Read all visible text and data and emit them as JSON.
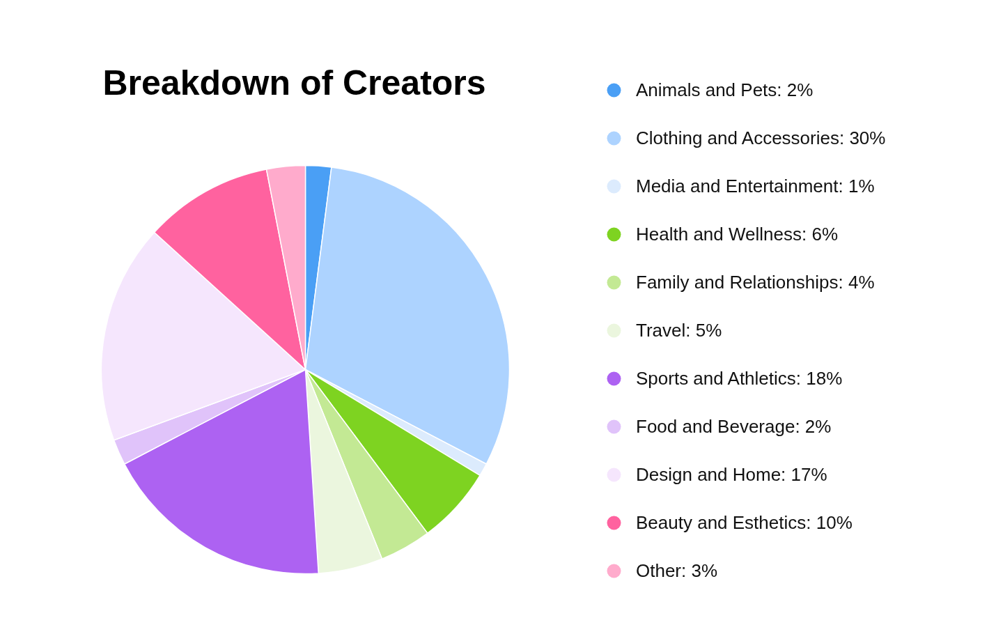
{
  "chart_data": {
    "type": "pie",
    "title": "Breakdown of Creators",
    "categories": [
      "Animals and Pets",
      "Clothing and Accessories",
      "Media and Entertainment",
      "Health and Wellness",
      "Family and Relationships",
      "Travel",
      "Sports and Athletics",
      "Food and Beverage",
      "Design and Home",
      "Beauty and Esthetics",
      "Other"
    ],
    "values": [
      2,
      30,
      1,
      6,
      4,
      5,
      18,
      2,
      17,
      10,
      3
    ],
    "value_labels": [
      "2%",
      "30%",
      "1%",
      "6%",
      "4%",
      "5%",
      "18%",
      "2%",
      "17%",
      "10%",
      "3%"
    ],
    "colors": [
      "#4a9ff5",
      "#add3ff",
      "#dcebfd",
      "#7ed321",
      "#c3e994",
      "#ebf6de",
      "#ad62f2",
      "#e0c3fa",
      "#f5e6fd",
      "#ff629f",
      "#ffabcc"
    ],
    "legend": "right"
  }
}
